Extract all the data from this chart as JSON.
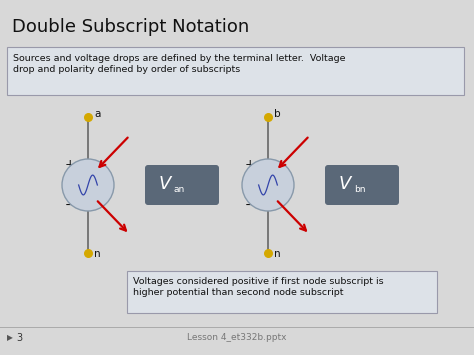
{
  "title": "Double Subscript Notation",
  "bg_color": "#d8d8d8",
  "top_box_text_line1": "Sources and voltage drops are defined by the terminal letter.  Voltage",
  "top_box_text_line2": "drop and polarity defined by order of subscripts",
  "bottom_box_text_line1": "Voltages considered positive if first node subscript is",
  "bottom_box_text_line2": "higher potential than second node subscript",
  "footer_text": "Lesson 4_et332b.pptx",
  "page_number": "3",
  "box_color": "#5a6878",
  "node_color": "#d4a800",
  "wire_color": "#666666",
  "arrow_color": "#cc0000",
  "circle_fill": "#c8d0dc",
  "circle_edge": "#8899aa",
  "top_box_fill": "#dde2e8",
  "top_box_edge": "#9999aa",
  "bottom_box_fill": "#dde2e8",
  "bottom_box_edge": "#9999aa"
}
